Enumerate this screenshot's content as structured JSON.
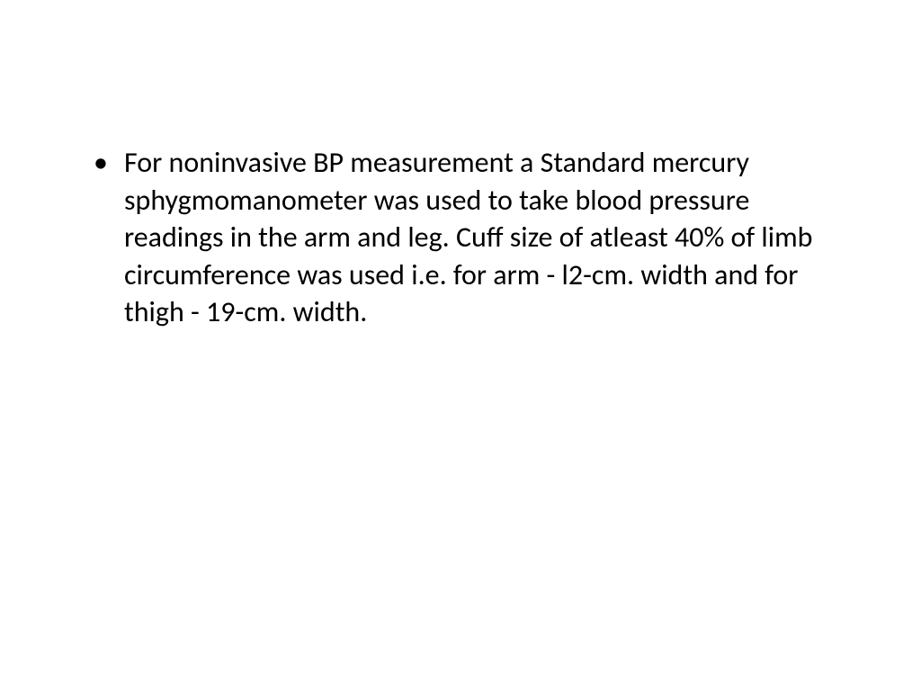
{
  "slide": {
    "background_color": "#ffffff",
    "text_color": "#000000",
    "font_family": "Calibri",
    "font_size_pt": 32,
    "line_height": 1.3,
    "bullets": [
      {
        "text": "For noninvasive BP measurement a Standard mercury sphygmomanometer was used to take blood pressure readings in the arm and leg. Cuff size of atleast 40% of limb circumference was used i.e. for arm - l2-cm. width and for thigh - 19-cm. width."
      }
    ]
  }
}
